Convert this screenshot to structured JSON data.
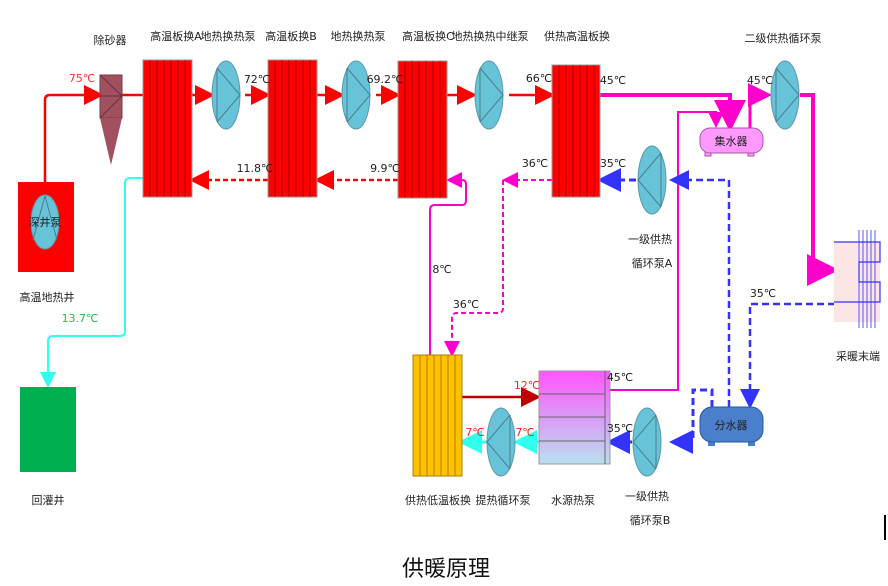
{
  "title": "供暖原理",
  "colors": {
    "hot": "#ff0000",
    "supply": "#ff00cc",
    "return": "#3333ff",
    "cold": "#33ffee",
    "pump": "#67c3d8",
    "lowplate": "#ffc000",
    "well_out": "#00b050",
    "collector": "#ff99ff",
    "distributor": "#4a7fcb"
  },
  "components": {
    "deep_well_pump": "深井泵",
    "geothermal_well": "高温地热井",
    "reinjection_well": "回灌井",
    "sand_remover": "除砂器",
    "plate_a": "高温板换A",
    "pump_1": "地热换热泵",
    "plate_b": "高温板换B",
    "pump_2": "地热换热泵",
    "plate_c": "高温板换C",
    "relay_pump": "地热换热中继泵",
    "heating_high_plate": "供热高温板换",
    "secondary_pump": "二级供热循环泵",
    "collector": "集水器",
    "terminal": "采暖末端",
    "distributor": "分水器",
    "primary_pump_a": [
      "一级供热",
      "循环泵A"
    ],
    "primary_pump_b": [
      "一级供热",
      "循环泵B"
    ],
    "heating_low_plate": "供热低温板换",
    "lift_pump": "提热循环泵",
    "water_source_hp": "水源热泵"
  },
  "temperatures": {
    "t75": "75℃",
    "t72": "72℃",
    "t692": "69.2℃",
    "t66": "66℃",
    "t45a": "45℃",
    "t45b": "45℃",
    "t45c": "45℃",
    "t118": "11.8℃",
    "t99": "9.9℃",
    "t137": "13.7℃",
    "t36a": "36℃",
    "t36b": "36℃",
    "t35a": "35℃",
    "t35b": "35℃",
    "t35c": "35℃",
    "t8": "8℃",
    "t12": "12℃",
    "t7a": "7℃",
    "t7b": "7℃"
  }
}
